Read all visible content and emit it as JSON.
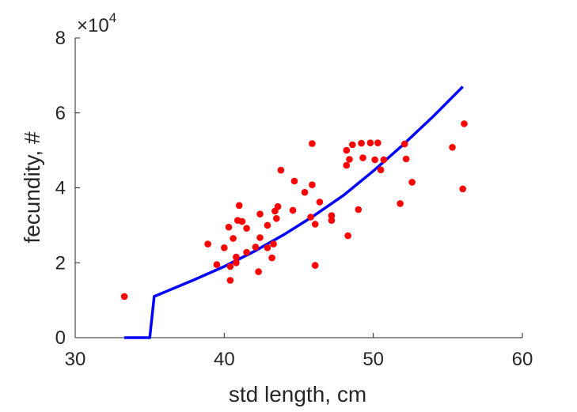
{
  "chart_data": {
    "type": "scatter",
    "title": "",
    "xlabel": "std length, cm",
    "ylabel": "fecundity, #",
    "xlim": [
      30,
      60
    ],
    "ylim": [
      0,
      80000
    ],
    "xticks": [
      "30",
      "40",
      "50",
      "60"
    ],
    "yticks": [
      "0",
      "2",
      "4",
      "6",
      "8"
    ],
    "y_exponent": {
      "base": "×10",
      "power": "4"
    },
    "grid": false,
    "legend": "none",
    "colors": {
      "points": "#ff0000",
      "curve": "#0000ff",
      "axes": "#262626"
    },
    "series": [
      {
        "type": "scatter",
        "points": [
          [
            33.3,
            11000
          ],
          [
            38.9,
            25000
          ],
          [
            39.5,
            19500
          ],
          [
            40.0,
            24000
          ],
          [
            40.3,
            29500
          ],
          [
            40.4,
            15300
          ],
          [
            40.4,
            19000
          ],
          [
            40.6,
            26500
          ],
          [
            40.8,
            21500
          ],
          [
            40.8,
            20000
          ],
          [
            40.9,
            31300
          ],
          [
            41.0,
            35300
          ],
          [
            41.2,
            31000
          ],
          [
            41.5,
            29200
          ],
          [
            41.5,
            22800
          ],
          [
            42.1,
            24200
          ],
          [
            42.3,
            17600
          ],
          [
            42.4,
            26700
          ],
          [
            42.4,
            33000
          ],
          [
            42.9,
            24000
          ],
          [
            42.9,
            30000
          ],
          [
            43.2,
            21300
          ],
          [
            43.3,
            25000
          ],
          [
            43.4,
            33800
          ],
          [
            43.5,
            31800
          ],
          [
            43.6,
            35000
          ],
          [
            43.8,
            44700
          ],
          [
            44.6,
            34000
          ],
          [
            44.7,
            41800
          ],
          [
            45.4,
            38800
          ],
          [
            45.8,
            32200
          ],
          [
            45.9,
            51800
          ],
          [
            45.9,
            40800
          ],
          [
            46.1,
            19300
          ],
          [
            46.1,
            30300
          ],
          [
            46.4,
            36200
          ],
          [
            47.2,
            32600
          ],
          [
            47.2,
            31300
          ],
          [
            48.2,
            46000
          ],
          [
            48.2,
            50000
          ],
          [
            48.3,
            27200
          ],
          [
            48.4,
            47600
          ],
          [
            48.6,
            51500
          ],
          [
            49.0,
            34200
          ],
          [
            49.2,
            51900
          ],
          [
            49.3,
            48000
          ],
          [
            49.8,
            52000
          ],
          [
            50.1,
            47500
          ],
          [
            50.3,
            52000
          ],
          [
            50.5,
            44800
          ],
          [
            50.7,
            47500
          ],
          [
            51.8,
            35800
          ],
          [
            52.1,
            51700
          ],
          [
            52.2,
            47700
          ],
          [
            52.6,
            41500
          ],
          [
            55.3,
            50800
          ],
          [
            56.0,
            39700
          ],
          [
            56.1,
            57100
          ]
        ]
      },
      {
        "type": "line",
        "points": [
          [
            33.3,
            0
          ],
          [
            35.0,
            0
          ],
          [
            35.3,
            11000
          ],
          [
            38.0,
            15500
          ],
          [
            40.0,
            19000
          ],
          [
            42.0,
            23000
          ],
          [
            44.0,
            27500
          ],
          [
            46.0,
            32500
          ],
          [
            48.0,
            38000
          ],
          [
            50.0,
            44500
          ],
          [
            52.0,
            51500
          ],
          [
            54.0,
            59000
          ],
          [
            56.0,
            67000
          ]
        ]
      }
    ]
  }
}
